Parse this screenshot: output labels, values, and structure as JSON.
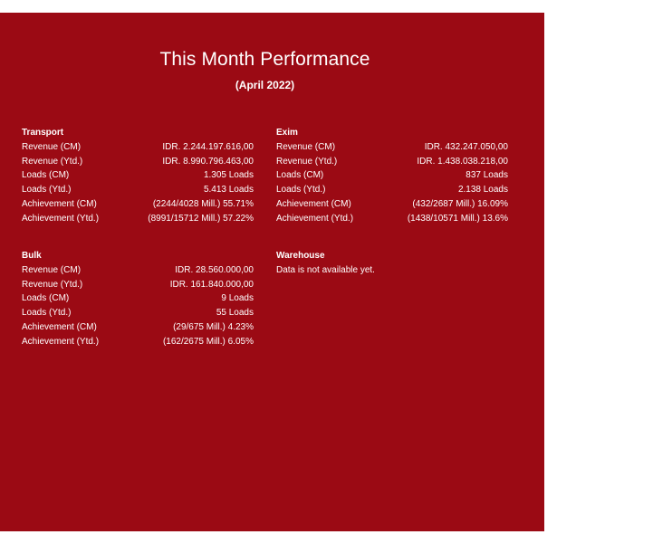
{
  "header": {
    "title": "This Month Performance",
    "subtitle": "(April 2022)"
  },
  "transport": {
    "name": "Transport",
    "rows": [
      {
        "label": "Revenue (CM)",
        "value": "IDR. 2.244.197.616,00"
      },
      {
        "label": "Revenue (Ytd.)",
        "value": "IDR. 8.990.796.463,00"
      },
      {
        "label": "Loads (CM)",
        "value": "1.305 Loads"
      },
      {
        "label": "Loads (Ytd.)",
        "value": "5.413 Loads"
      },
      {
        "label": "Achievement (CM)",
        "value": "(2244/4028 Mill.) 55.71%"
      },
      {
        "label": "Achievement (Ytd.)",
        "value": "(8991/15712 Mill.) 57.22%"
      }
    ]
  },
  "exim": {
    "name": "Exim",
    "rows": [
      {
        "label": "Revenue (CM)",
        "value": "IDR. 432.247.050,00"
      },
      {
        "label": "Revenue (Ytd.)",
        "value": "IDR. 1.438.038.218,00"
      },
      {
        "label": "Loads (CM)",
        "value": "837 Loads"
      },
      {
        "label": "Loads (Ytd.)",
        "value": "2.138 Loads"
      },
      {
        "label": "Achievement (CM)",
        "value": "(432/2687 Mill.) 16.09%"
      },
      {
        "label": "Achievement (Ytd.)",
        "value": "(1438/10571 Mill.) 13.6%"
      }
    ]
  },
  "bulk": {
    "name": "Bulk",
    "rows": [
      {
        "label": "Revenue (CM)",
        "value": "IDR. 28.560.000,00"
      },
      {
        "label": "Revenue (Ytd.)",
        "value": "IDR. 161.840.000,00"
      },
      {
        "label": "Loads (CM)",
        "value": "9 Loads"
      },
      {
        "label": "Loads (Ytd.)",
        "value": "55 Loads"
      },
      {
        "label": "Achievement (CM)",
        "value": "(29/675 Mill.) 4.23%"
      },
      {
        "label": "Achievement (Ytd.)",
        "value": "(162/2675 Mill.) 6.05%"
      }
    ]
  },
  "warehouse": {
    "name": "Warehouse",
    "message": "Data is not available yet."
  },
  "colors": {
    "panel_background": "#9b0a14",
    "text": "#ffffff"
  }
}
